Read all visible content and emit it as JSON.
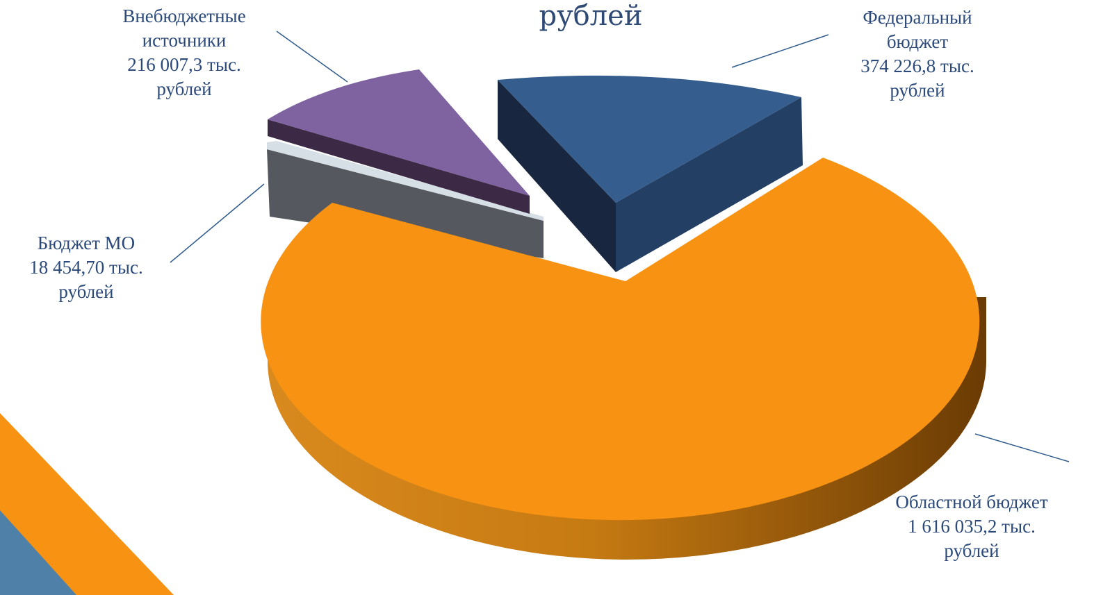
{
  "chart_data": {
    "type": "pie",
    "title": "рублей",
    "slices": [
      {
        "label_lines": [
          "Федеральный",
          "бюджет",
          "374 226,8 тыс.",
          "рублей"
        ],
        "value": 374226.8,
        "color": "#355E8F",
        "side_color": "#1F3554"
      },
      {
        "label_lines": [
          "Областной бюджет",
          "1 616 035,2 тыс.",
          "рублей"
        ],
        "value": 1616035.2,
        "color": "#F79213",
        "side_color": "#A85A08"
      },
      {
        "label_lines": [
          "Бюджет МО",
          "18 454,70 тыс.",
          "рублей"
        ],
        "value": 18454.7,
        "color": "#5A5E66",
        "side_color": "#3A3E44"
      },
      {
        "label_lines": [
          "Внебюджетные",
          "источники",
          "216 007,3 тыс.",
          "рублей"
        ],
        "value": 216007.3,
        "color": "#7F62A0",
        "side_color": "#3B2946"
      }
    ],
    "legend": "none"
  },
  "decor": {
    "orange": "#F79213",
    "blue": "#4F81A8"
  }
}
